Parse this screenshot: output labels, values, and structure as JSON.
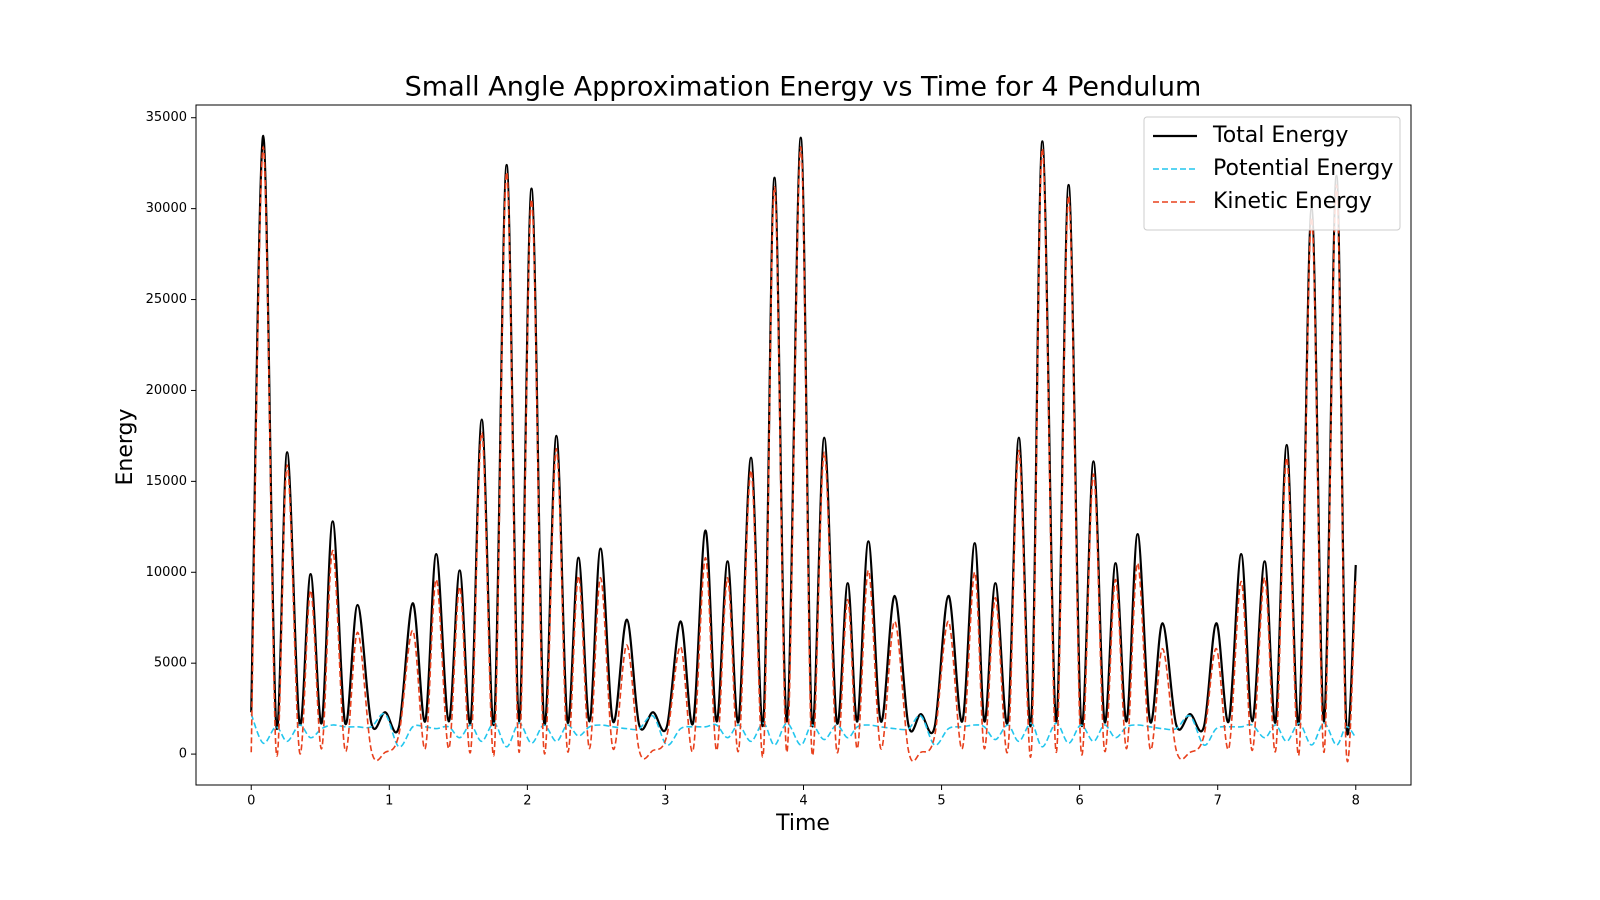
{
  "chart_data": {
    "type": "line",
    "title": "Small Angle Approximation Energy vs Time for 4 Pendulum",
    "x_label": "Time",
    "y_label": "Energy",
    "x": [
      0,
      0.087,
      0.18,
      0.26,
      0.35,
      0.43,
      0.51,
      0.59,
      0.68,
      0.77,
      0.87,
      0.97,
      1.07,
      1.17,
      1.26,
      1.34,
      1.43,
      1.51,
      1.59,
      1.67,
      1.76,
      1.85,
      1.94,
      2.03,
      2.12,
      2.21,
      2.29,
      2.37,
      2.45,
      2.53,
      2.62,
      2.72,
      2.81,
      2.91,
      3.01,
      3.11,
      3.2,
      3.29,
      3.37,
      3.45,
      3.53,
      3.62,
      3.71,
      3.79,
      3.88,
      3.98,
      4.06,
      4.15,
      4.24,
      4.32,
      4.39,
      4.47,
      4.56,
      4.66,
      4.76,
      4.85,
      4.95,
      5.05,
      5.15,
      5.24,
      5.31,
      5.39,
      5.48,
      5.56,
      5.65,
      5.73,
      5.83,
      5.92,
      6.01,
      6.1,
      6.18,
      6.26,
      6.34,
      6.42,
      6.51,
      6.6,
      6.7,
      6.8,
      6.9,
      6.99,
      7.08,
      7.17,
      7.25,
      7.34,
      7.42,
      7.5,
      7.59,
      7.68,
      7.77,
      7.86,
      7.93,
      8
    ],
    "series": [
      {
        "name": "Total Energy",
        "color": "#000000",
        "linestyle": "solid",
        "values": [
          2300,
          34000,
          1700,
          16600,
          1700,
          9900,
          1700,
          12800,
          1700,
          8200,
          1700,
          2300,
          1500,
          8300,
          1800,
          11000,
          1800,
          10100,
          1800,
          18400,
          1800,
          32400,
          1800,
          31100,
          1800,
          17500,
          1800,
          10800,
          1800,
          11300,
          1800,
          7400,
          1600,
          2300,
          1500,
          7300,
          1700,
          12300,
          1800,
          10600,
          1800,
          16300,
          1800,
          31700,
          1800,
          33900,
          1800,
          17400,
          1800,
          9400,
          1800,
          11700,
          1800,
          8700,
          1600,
          2200,
          1500,
          8700,
          1800,
          11600,
          1800,
          9400,
          1800,
          17400,
          1800,
          33700,
          1800,
          31300,
          1800,
          16100,
          1800,
          10500,
          1800,
          12100,
          1800,
          7200,
          1600,
          2200,
          1500,
          7200,
          1800,
          11000,
          1800,
          10600,
          1800,
          17000,
          1800,
          30000,
          1800,
          31800,
          1800,
          10400
        ]
      },
      {
        "name": "Potential Energy",
        "color": "#22c6ee",
        "linestyle": "dashed",
        "values": [
          2200,
          600,
          1500,
          700,
          1600,
          900,
          1400,
          1600,
          1500,
          1500,
          1500,
          2200,
          400,
          1500,
          1500,
          1400,
          1500,
          900,
          1600,
          700,
          1700,
          400,
          1700,
          600,
          1600,
          700,
          1600,
          1000,
          1500,
          1600,
          1500,
          1400,
          1400,
          2100,
          500,
          1400,
          1500,
          1500,
          1600,
          900,
          1600,
          700,
          1700,
          500,
          1700,
          500,
          1600,
          800,
          1600,
          900,
          1500,
          1600,
          1500,
          1400,
          1400,
          2100,
          500,
          1400,
          1500,
          1600,
          1500,
          800,
          1600,
          700,
          1700,
          400,
          1700,
          600,
          1600,
          700,
          1600,
          900,
          1500,
          1600,
          1500,
          1400,
          1400,
          2100,
          500,
          1400,
          1500,
          1500,
          1600,
          900,
          1600,
          700,
          1700,
          500,
          1700,
          500,
          1500,
          900
        ]
      },
      {
        "name": "Kinetic Energy",
        "color": "#e8401c",
        "linestyle": "dashed",
        "values": [
          100,
          33400,
          200,
          15900,
          100,
          9000,
          300,
          11200,
          200,
          6700,
          200,
          100,
          1100,
          6800,
          300,
          9600,
          300,
          9200,
          200,
          17700,
          100,
          32000,
          100,
          30500,
          200,
          16800,
          200,
          9800,
          300,
          9700,
          300,
          6000,
          200,
          200,
          1000,
          5900,
          200,
          10800,
          200,
          9700,
          200,
          15600,
          100,
          31200,
          100,
          33400,
          200,
          16600,
          200,
          8500,
          300,
          10100,
          300,
          7300,
          200,
          100,
          1000,
          7300,
          300,
          10000,
          300,
          8600,
          200,
          16700,
          100,
          33300,
          100,
          30700,
          200,
          15400,
          200,
          9600,
          300,
          10500,
          300,
          5800,
          200,
          100,
          1000,
          5800,
          300,
          9500,
          200,
          9700,
          200,
          16300,
          100,
          29500,
          100,
          31300,
          300,
          9500
        ]
      }
    ],
    "xlim": [
      -0.4,
      8.4
    ],
    "ylim": [
      -1700,
      35700
    ],
    "xticks": [
      0,
      1,
      2,
      3,
      4,
      5,
      6,
      7,
      8
    ],
    "yticks": [
      0,
      5000,
      10000,
      15000,
      20000,
      25000,
      30000,
      35000
    ],
    "grid": false,
    "legend": "upper right"
  }
}
